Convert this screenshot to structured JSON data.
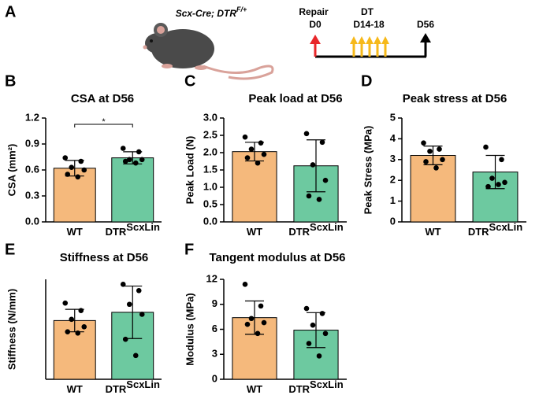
{
  "panel_a": {
    "panel": "A",
    "genotype": "Scx-Cre; DTR",
    "genotype_sup": "F/+",
    "repair": "Repair",
    "d0": "D0",
    "dt": "DT",
    "dt_days": "D14-18",
    "end": "D56"
  },
  "chart_data": [
    {
      "type": "bar",
      "panel": "B",
      "title": "CSA at D56",
      "ylabel": "CSA (mm²)",
      "categories": [
        "WT",
        "DTR"
      ],
      "category_sups": [
        null,
        "ScxLin"
      ],
      "colors": [
        "#f5b97c",
        "#6dc9a0"
      ],
      "values": [
        0.62,
        0.74
      ],
      "errors": [
        0.09,
        0.07
      ],
      "points": [
        [
          0.74,
          0.7,
          0.63,
          0.6,
          0.55,
          0.52
        ],
        [
          0.85,
          0.81,
          0.72,
          0.72,
          0.7,
          0.68
        ]
      ],
      "ylim": [
        0,
        1.2
      ],
      "yticks": [
        {
          "value": 0,
          "label": "0.0"
        },
        0.3,
        0.6,
        0.9,
        1.2
      ],
      "significance": "*"
    },
    {
      "type": "bar",
      "panel": "C",
      "title": "Peak load at D56",
      "ylabel": "Peak Load (N)",
      "categories": [
        "WT",
        "DTR"
      ],
      "category_sups": [
        null,
        "ScxLin"
      ],
      "colors": [
        "#f5b97c",
        "#6dc9a0"
      ],
      "values": [
        2.03,
        1.62
      ],
      "errors": [
        0.27,
        0.75
      ],
      "points": [
        [
          2.45,
          2.28,
          2.1,
          1.95,
          1.85,
          1.7
        ],
        [
          2.55,
          2.3,
          1.65,
          1.2,
          0.75,
          0.65
        ]
      ],
      "ylim": [
        0,
        3
      ],
      "yticks": [
        {
          "value": 0,
          "label": "0.0"
        },
        0.5,
        {
          "value": 1,
          "label": "1.0"
        },
        1.5,
        {
          "value": 2,
          "label": "2.0"
        },
        2.5,
        {
          "value": 3,
          "label": "3.0"
        }
      ]
    },
    {
      "type": "bar",
      "panel": "D",
      "title": "Peak stress at D56",
      "ylabel": "Peak  Stress (MPa)",
      "categories": [
        "WT",
        "DTR"
      ],
      "category_sups": [
        null,
        "ScxLin"
      ],
      "colors": [
        "#f5b97c",
        "#6dc9a0"
      ],
      "values": [
        3.2,
        2.4
      ],
      "errors": [
        0.45,
        0.8
      ],
      "points": [
        [
          3.8,
          3.5,
          3.4,
          3.0,
          2.9,
          2.6
        ],
        [
          3.6,
          3.0,
          2.1,
          1.9,
          1.7,
          1.8
        ]
      ],
      "ylim": [
        0,
        5
      ],
      "yticks": [
        0,
        1,
        2,
        3,
        4,
        5
      ]
    },
    {
      "type": "bar",
      "panel": "E",
      "title": "Stiffness at D56",
      "ylabel": "Stiffness (N/mm)",
      "categories": [
        "WT",
        "DTR"
      ],
      "category_sups": [
        null,
        "ScxLin"
      ],
      "colors": [
        "#f5b97c",
        "#6dc9a0"
      ],
      "values": [
        2.35,
        2.68
      ],
      "errors": [
        0.45,
        1.05
      ],
      "points": [
        [
          3.05,
          2.75,
          2.4,
          2.1,
          1.9,
          1.85
        ],
        [
          3.8,
          3.55,
          3.0,
          2.6,
          1.6,
          0.95
        ]
      ],
      "ylim": [
        0,
        4
      ]
    },
    {
      "type": "bar",
      "panel": "F",
      "title": "Tangent modulus at D56",
      "ylabel": "Modulus (MPa)",
      "categories": [
        "WT",
        "DTR"
      ],
      "category_sups": [
        null,
        "ScxLin"
      ],
      "colors": [
        "#f5b97c",
        "#6dc9a0"
      ],
      "values": [
        7.4,
        5.9
      ],
      "errors": [
        2.0,
        2.1
      ],
      "points": [
        [
          11.4,
          8.8,
          7.3,
          6.8,
          6.6,
          5.5
        ],
        [
          8.5,
          7.9,
          6.5,
          5.5,
          4.3,
          2.8
        ]
      ],
      "ylim": [
        0,
        12
      ],
      "yticks": [
        0,
        3,
        6,
        9,
        12
      ]
    }
  ]
}
